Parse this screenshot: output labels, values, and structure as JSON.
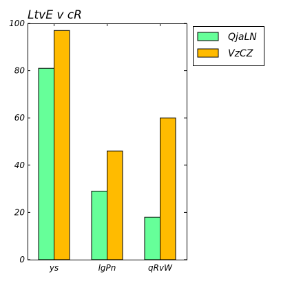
{
  "chart_data": {
    "type": "bar",
    "title": "LtvE v cR",
    "xlabel": "",
    "ylabel": "",
    "categories": [
      "ys",
      "lgPn",
      "qRvW"
    ],
    "series": [
      {
        "name": "QjaLN",
        "color": "#66ff99",
        "values": [
          81,
          29,
          18
        ]
      },
      {
        "name": "VzCZ",
        "color": "#ffbb00",
        "values": [
          97,
          46,
          60
        ]
      }
    ],
    "ylim": [
      0,
      100
    ],
    "yticks": [
      "0",
      "20",
      "40",
      "60",
      "80",
      "100"
    ],
    "grid": false,
    "legend": "outside-right-top"
  }
}
